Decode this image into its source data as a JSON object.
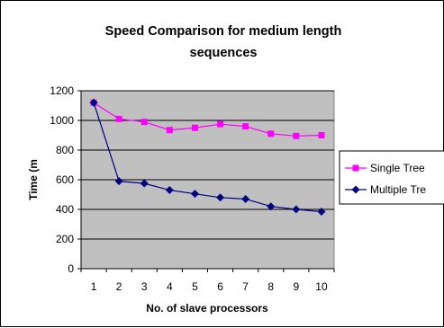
{
  "chart_data": {
    "type": "line",
    "title_lines": [
      "Speed Comparison for medium length",
      "sequences"
    ],
    "xlabel": "No. of slave processors",
    "ylabel": "Time (m",
    "categories": [
      "1",
      "2",
      "3",
      "4",
      "5",
      "6",
      "7",
      "8",
      "9",
      "10"
    ],
    "ylim": [
      0,
      1200
    ],
    "yticks": [
      "0",
      "200",
      "400",
      "600",
      "800",
      "1000",
      "1200"
    ],
    "grid": true,
    "legend_position": "right",
    "plot_background": "#c0c0c0",
    "series": [
      {
        "name": "Single Tree",
        "color": "#ff00ff",
        "marker": "square",
        "values": [
          1120,
          1010,
          990,
          935,
          950,
          975,
          960,
          910,
          895,
          900
        ]
      },
      {
        "name": "Multiple Tre",
        "color": "#000080",
        "marker": "diamond",
        "values": [
          1120,
          590,
          575,
          530,
          505,
          480,
          470,
          420,
          400,
          385
        ]
      }
    ]
  }
}
